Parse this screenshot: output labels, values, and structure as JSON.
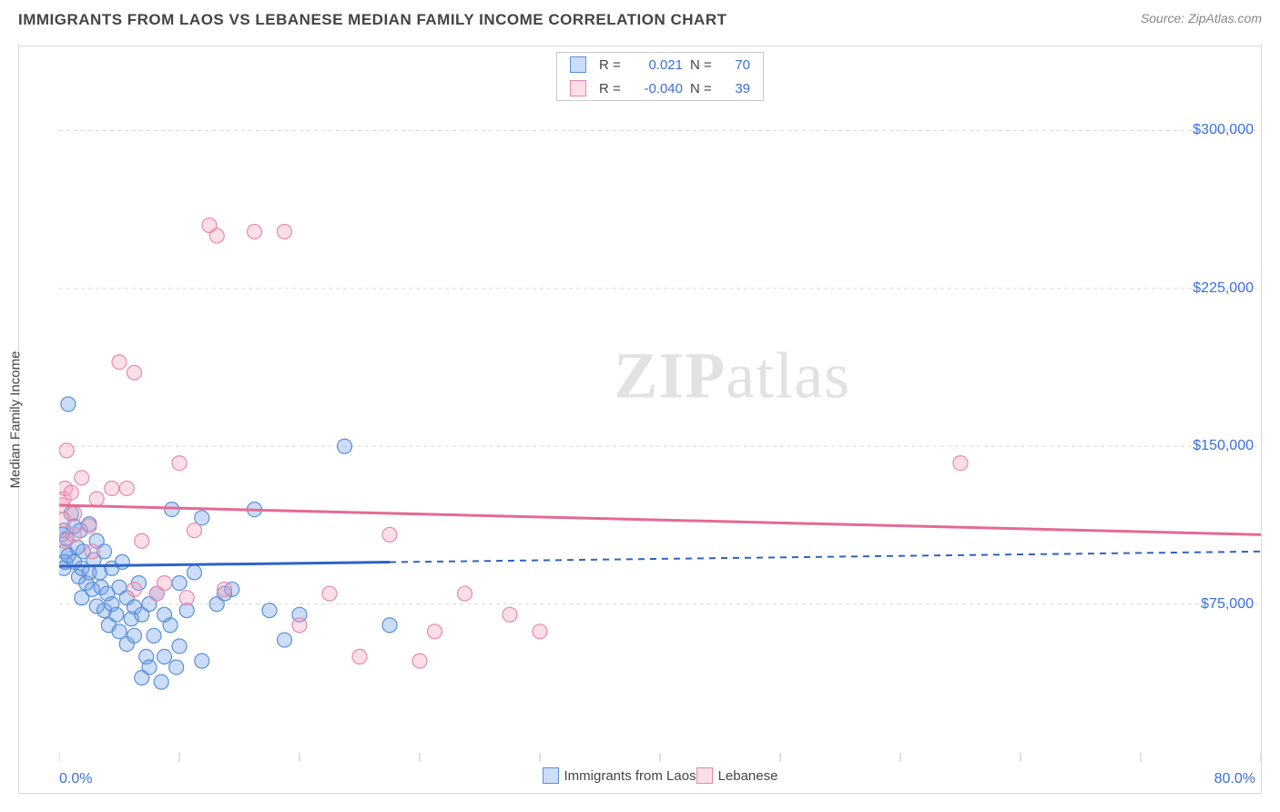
{
  "title": "IMMIGRANTS FROM LAOS VS LEBANESE MEDIAN FAMILY INCOME CORRELATION CHART",
  "source": "Source: ZipAtlas.com",
  "watermark": {
    "bold": "ZIP",
    "light": "atlas"
  },
  "y_axis_label": "Median Family Income",
  "chart": {
    "type": "scatter",
    "xlim": [
      0,
      80
    ],
    "ylim": [
      0,
      340000
    ],
    "x_tick_positions": [
      0,
      8,
      16,
      24,
      32,
      40,
      48,
      56,
      64,
      72,
      80
    ],
    "x_min_label": "0.0%",
    "x_max_label": "80.0%",
    "y_gridlines": [
      {
        "y": 75000,
        "label": "$75,000"
      },
      {
        "y": 150000,
        "label": "$150,000"
      },
      {
        "y": 225000,
        "label": "$225,000"
      },
      {
        "y": 300000,
        "label": "$300,000"
      }
    ],
    "grid_color": "#d9d9d9",
    "background_color": "#ffffff",
    "tick_color": "#bfbfbf",
    "marker_radius": 8,
    "marker_stroke_width": 1.2,
    "axis_label_color": "#3b6fd6",
    "series": [
      {
        "id": "laos",
        "label": "Immigrants from Laos",
        "fill": "rgba(109,158,235,0.35)",
        "stroke": "#5b8fd6",
        "line_color": "#2f63c4",
        "R": "0.021",
        "N": "70",
        "trend": {
          "x1": 0,
          "y1": 93000,
          "x2": 80,
          "y2": 100000,
          "solid_until_x": 22
        },
        "points": [
          [
            0.2,
            108000
          ],
          [
            0.3,
            110000
          ],
          [
            0.3,
            92000
          ],
          [
            0.4,
            100000
          ],
          [
            0.4,
            95000
          ],
          [
            0.5,
            106000
          ],
          [
            0.6,
            170000
          ],
          [
            0.6,
            98000
          ],
          [
            0.8,
            118000
          ],
          [
            1.0,
            112000
          ],
          [
            1.0,
            95000
          ],
          [
            1.2,
            102000
          ],
          [
            1.3,
            88000
          ],
          [
            1.4,
            110000
          ],
          [
            1.5,
            92000
          ],
          [
            1.5,
            78000
          ],
          [
            1.6,
            100000
          ],
          [
            1.8,
            85000
          ],
          [
            2.0,
            113000
          ],
          [
            2.0,
            90000
          ],
          [
            2.2,
            82000
          ],
          [
            2.3,
            96000
          ],
          [
            2.5,
            74000
          ],
          [
            2.5,
            105000
          ],
          [
            2.7,
            90000
          ],
          [
            2.8,
            83000
          ],
          [
            3.0,
            72000
          ],
          [
            3.0,
            100000
          ],
          [
            3.2,
            80000
          ],
          [
            3.3,
            65000
          ],
          [
            3.5,
            92000
          ],
          [
            3.5,
            75000
          ],
          [
            3.8,
            70000
          ],
          [
            4.0,
            83000
          ],
          [
            4.0,
            62000
          ],
          [
            4.2,
            95000
          ],
          [
            4.5,
            78000
          ],
          [
            4.5,
            56000
          ],
          [
            4.8,
            68000
          ],
          [
            5.0,
            73600
          ],
          [
            5.0,
            60000
          ],
          [
            5.3,
            85000
          ],
          [
            5.5,
            40000
          ],
          [
            5.5,
            70000
          ],
          [
            5.8,
            50000
          ],
          [
            6.0,
            75000
          ],
          [
            6.0,
            45000
          ],
          [
            6.3,
            60000
          ],
          [
            6.5,
            80000
          ],
          [
            6.8,
            38000
          ],
          [
            7.0,
            70000
          ],
          [
            7.0,
            50000
          ],
          [
            7.4,
            65000
          ],
          [
            7.5,
            120000
          ],
          [
            7.8,
            45000
          ],
          [
            8.0,
            55000
          ],
          [
            8.0,
            85000
          ],
          [
            8.5,
            72000
          ],
          [
            9.0,
            90000
          ],
          [
            9.5,
            116000
          ],
          [
            9.5,
            48000
          ],
          [
            10.5,
            75000
          ],
          [
            11.0,
            80000
          ],
          [
            11.5,
            82000
          ],
          [
            13.0,
            120000
          ],
          [
            14.0,
            72000
          ],
          [
            15.0,
            58000
          ],
          [
            16.0,
            70000
          ],
          [
            19.0,
            150000
          ],
          [
            22.0,
            65000
          ]
        ]
      },
      {
        "id": "lebanese",
        "label": "Lebanese",
        "fill": "rgba(244,160,190,0.35)",
        "stroke": "#e68aac",
        "line_color": "#e46a93",
        "R": "-0.040",
        "N": "39",
        "trend": {
          "x1": 0,
          "y1": 122000,
          "x2": 80,
          "y2": 108000,
          "solid_until_x": 80
        },
        "points": [
          [
            0.2,
            122000
          ],
          [
            0.3,
            125000
          ],
          [
            0.3,
            115000
          ],
          [
            0.4,
            130000
          ],
          [
            0.4,
            105000
          ],
          [
            0.5,
            148000
          ],
          [
            0.8,
            128000
          ],
          [
            1.0,
            118000
          ],
          [
            1.0,
            108000
          ],
          [
            1.5,
            135000
          ],
          [
            2.0,
            112000
          ],
          [
            2.2,
            100000
          ],
          [
            2.5,
            125000
          ],
          [
            3.5,
            130000
          ],
          [
            4.0,
            190000
          ],
          [
            4.5,
            130000
          ],
          [
            5.0,
            185000
          ],
          [
            5.0,
            82000
          ],
          [
            5.5,
            105000
          ],
          [
            6.5,
            80000
          ],
          [
            7.0,
            85000
          ],
          [
            8.0,
            142000
          ],
          [
            8.5,
            78000
          ],
          [
            9.0,
            110000
          ],
          [
            10.0,
            255000
          ],
          [
            10.5,
            250000
          ],
          [
            11.0,
            82000
          ],
          [
            13.0,
            252000
          ],
          [
            15.0,
            252000
          ],
          [
            16.0,
            65000
          ],
          [
            18.0,
            80000
          ],
          [
            20.0,
            50000
          ],
          [
            22.0,
            108000
          ],
          [
            24.0,
            48000
          ],
          [
            25.0,
            62000
          ],
          [
            27.0,
            80000
          ],
          [
            30.0,
            70000
          ],
          [
            32.0,
            62000
          ],
          [
            60.0,
            142000
          ]
        ]
      }
    ],
    "bottom_legend": [
      {
        "series": "laos"
      },
      {
        "series": "lebanese"
      }
    ]
  },
  "top_legend": {
    "R_label": "R =",
    "N_label": "N ="
  }
}
